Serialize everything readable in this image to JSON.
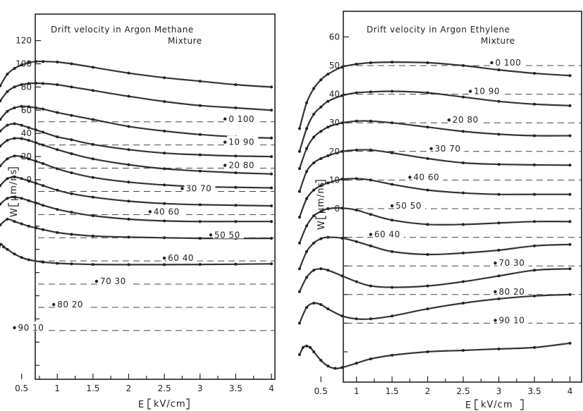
{
  "chart_data": [
    {
      "type": "line",
      "title": "Drift velocity in Argon Methane Mixture",
      "title_lines": [
        "Drift velocity in Argon Methane",
        "Mixture"
      ],
      "xlabel": "E",
      "xunit": "kV/cm",
      "ylabel": "W",
      "yunit": "μm/ns",
      "xlim": [
        0.1,
        4
      ],
      "x_ticks": [
        "0.5",
        "1",
        "1.5",
        "2",
        "2.5",
        "3",
        "3.5",
        "4"
      ],
      "y_ticks": [
        "0",
        "20",
        "40",
        "60",
        "80",
        "100",
        "120"
      ],
      "curve_offset_step": 20,
      "series": [
        {
          "name": "0 100",
          "baseline": 50,
          "x": [
            0.2,
            0.3,
            0.4,
            0.5,
            0.6,
            0.7,
            0.8,
            1.0,
            1.2,
            1.5,
            2.0,
            2.5,
            3.0,
            3.5,
            4.0
          ],
          "y": [
            81,
            91,
            96,
            99,
            101,
            102,
            102,
            101.5,
            100,
            97,
            92,
            88,
            85,
            82,
            80
          ]
        },
        {
          "name": "10 90",
          "baseline": 30,
          "x": [
            0.2,
            0.3,
            0.4,
            0.5,
            0.6,
            0.7,
            0.8,
            1.0,
            1.2,
            1.5,
            2.0,
            2.5,
            3.0,
            3.5,
            4.0
          ],
          "y": [
            68,
            76,
            80,
            82,
            83,
            83.3,
            83,
            82,
            80,
            77,
            72,
            67.5,
            64,
            62,
            60
          ]
        },
        {
          "name": "20 80",
          "baseline": 10,
          "x": [
            0.2,
            0.3,
            0.4,
            0.5,
            0.6,
            0.7,
            0.8,
            1.0,
            1.2,
            1.5,
            2.0,
            2.5,
            3.0,
            3.5,
            4.0
          ],
          "y": [
            52,
            59,
            62,
            63.3,
            63,
            62,
            61,
            58,
            55.5,
            52,
            46,
            42,
            39,
            37,
            36
          ]
        },
        {
          "name": "30 70",
          "baseline": -10,
          "x": [
            0.2,
            0.3,
            0.4,
            0.5,
            0.6,
            0.7,
            0.8,
            1.0,
            1.2,
            1.5,
            2.0,
            2.5,
            3.0,
            3.5,
            4.0
          ],
          "y": [
            42,
            47,
            48.3,
            47,
            45,
            43,
            41,
            37,
            34.5,
            30.5,
            26,
            23,
            21.5,
            20.5,
            20
          ]
        },
        {
          "name": "40 60",
          "baseline": -30,
          "x": [
            0.2,
            0.3,
            0.4,
            0.5,
            0.6,
            0.7,
            0.8,
            1.0,
            1.2,
            1.5,
            2.0,
            2.5,
            3.0,
            3.5,
            4.0
          ],
          "y": [
            29,
            34,
            35.7,
            35.5,
            34,
            32,
            30,
            26,
            22.5,
            18,
            13,
            9.5,
            7.5,
            6,
            5
          ]
        },
        {
          "name": "50 50",
          "baseline": -50,
          "x": [
            0.2,
            0.3,
            0.4,
            0.5,
            0.6,
            0.7,
            0.8,
            1.0,
            1.2,
            1.5,
            2.0,
            2.5,
            3.0,
            3.5,
            4.0
          ],
          "y": [
            12,
            18,
            20.5,
            20,
            18,
            16,
            14,
            9.5,
            6,
            2,
            -2,
            -4.5,
            -6,
            -6.5,
            -7
          ]
        },
        {
          "name": "60 40",
          "baseline": -70,
          "x": [
            0.2,
            0.3,
            0.4,
            0.5,
            0.6,
            0.7,
            0.8,
            1.0,
            1.2,
            1.5,
            2.0,
            2.5,
            3.0,
            3.5,
            4.0
          ],
          "y": [
            -5,
            1,
            2.4,
            1,
            -1,
            -3,
            -5,
            -9,
            -12,
            -15,
            -18.5,
            -20.5,
            -21.5,
            -22,
            -22.5
          ]
        },
        {
          "name": "70 30",
          "baseline": -90,
          "x": [
            0.2,
            0.3,
            0.4,
            0.5,
            0.6,
            0.7,
            0.8,
            1.0,
            1.2,
            1.5,
            2.0,
            2.5,
            3.0,
            3.5,
            4.0
          ],
          "y": [
            -21,
            -16,
            -15,
            -16,
            -18,
            -20,
            -22,
            -25.5,
            -28,
            -31,
            -34,
            -35.5,
            -36,
            -36,
            -36
          ]
        },
        {
          "name": "80 20",
          "baseline": -110,
          "x": [
            0.2,
            0.3,
            0.4,
            0.5,
            0.6,
            0.7,
            0.8,
            1.0,
            1.2,
            1.5,
            2.0,
            2.5,
            3.0,
            3.5,
            4.0
          ],
          "y": [
            -39,
            -34,
            -36,
            -38,
            -40,
            -41.5,
            -43,
            -45.5,
            -47,
            -48.5,
            -49.5,
            -50,
            -50.5,
            -50.5,
            -50.5
          ]
        },
        {
          "name": "90 10",
          "baseline": -130,
          "x": [
            0.15,
            0.2,
            0.25,
            0.3,
            0.4,
            0.5,
            0.6,
            0.8,
            1.0,
            1.2,
            1.5,
            2.0,
            2.5,
            3.0,
            3.5,
            4.0
          ],
          "y": [
            -74,
            -56,
            -58,
            -60,
            -64,
            -67,
            -69,
            -71,
            -72,
            -72.5,
            -73,
            -73.2,
            -73.2,
            -73,
            -72.8,
            -72.5
          ]
        }
      ]
    },
    {
      "type": "line",
      "title": "Drift velocity in Argon Ethylene Mixture",
      "title_lines": [
        "Drift velocity in Argon Ethylene",
        "Mixture"
      ],
      "xlabel": "E",
      "xunit": "kV/cm",
      "ylabel": "W",
      "yunit": "μm/ns",
      "xlim": [
        0.1,
        4
      ],
      "x_ticks": [
        "0.5",
        "1",
        "1.5",
        "2",
        "2.5",
        "3",
        "3.5",
        "4"
      ],
      "y_ticks": [
        "0",
        "10",
        "20",
        "30",
        "40",
        "50",
        "60"
      ],
      "curve_offset_step": 10,
      "series": [
        {
          "name": "0 100",
          "baseline": 50,
          "x": [
            0.2,
            0.3,
            0.4,
            0.5,
            0.6,
            0.8,
            1.0,
            1.2,
            1.5,
            2.0,
            2.5,
            3.0,
            3.5,
            4.0
          ],
          "y": [
            28,
            37,
            42,
            45,
            47,
            49.5,
            50.5,
            51,
            51.2,
            51,
            50,
            48.5,
            47.3,
            46.5
          ]
        },
        {
          "name": "10 90",
          "baseline": 40,
          "x": [
            0.2,
            0.3,
            0.4,
            0.5,
            0.6,
            0.8,
            1.0,
            1.2,
            1.5,
            2.0,
            2.5,
            3.0,
            3.5,
            4.0
          ],
          "y": [
            20,
            28,
            33,
            35.5,
            37.5,
            39.5,
            40.5,
            40.8,
            41,
            40.5,
            39,
            37.5,
            36.5,
            36
          ]
        },
        {
          "name": "20 80",
          "baseline": 30,
          "x": [
            0.2,
            0.3,
            0.4,
            0.5,
            0.6,
            0.8,
            1.0,
            1.2,
            1.5,
            2.0,
            2.5,
            3.0,
            3.5,
            4.0
          ],
          "y": [
            14,
            21,
            25,
            27,
            28.5,
            30,
            30.6,
            30.6,
            30,
            28.5,
            27,
            26,
            25.5,
            25.5
          ]
        },
        {
          "name": "30 70",
          "baseline": 20,
          "x": [
            0.2,
            0.3,
            0.4,
            0.5,
            0.6,
            0.8,
            1.0,
            1.2,
            1.5,
            2.0,
            2.5,
            3.0,
            3.5,
            4.0
          ],
          "y": [
            6,
            13,
            16,
            17.5,
            18.5,
            20,
            20.5,
            20.5,
            19.5,
            17.5,
            16,
            15.5,
            15.3,
            15.2
          ]
        },
        {
          "name": "40 60",
          "baseline": 10,
          "x": [
            0.2,
            0.3,
            0.4,
            0.5,
            0.6,
            0.8,
            1.0,
            1.2,
            1.5,
            2.0,
            2.5,
            3.0,
            3.5,
            4.0
          ],
          "y": [
            -3,
            3.5,
            6.5,
            8,
            9,
            10.3,
            10.5,
            10,
            8.5,
            6.5,
            5.5,
            5,
            5,
            5
          ]
        },
        {
          "name": "50 50",
          "baseline": 0,
          "x": [
            0.2,
            0.3,
            0.4,
            0.5,
            0.6,
            0.8,
            1.0,
            1.2,
            1.5,
            2.0,
            2.5,
            3.0,
            3.5,
            4.0
          ],
          "y": [
            -12,
            -6,
            -2.5,
            -1,
            0,
            0.2,
            -0.5,
            -2,
            -4,
            -5.5,
            -5.5,
            -5,
            -4.5,
            -4.5
          ]
        },
        {
          "name": "60 40",
          "baseline": -10,
          "x": [
            0.2,
            0.3,
            0.4,
            0.5,
            0.6,
            0.8,
            1.0,
            1.2,
            1.5,
            2.0,
            2.5,
            3.0,
            3.5,
            4.0
          ],
          "y": [
            -21,
            -15,
            -12,
            -10.5,
            -10,
            -10.3,
            -11.5,
            -13,
            -15,
            -16,
            -15.5,
            -14.5,
            -13,
            -12.5
          ]
        },
        {
          "name": "70 30",
          "baseline": -20,
          "x": [
            0.2,
            0.3,
            0.4,
            0.5,
            0.6,
            0.8,
            1.0,
            1.2,
            1.5,
            2.0,
            2.5,
            3.0,
            3.5,
            4.0
          ],
          "y": [
            -29,
            -24,
            -21.5,
            -21,
            -21.5,
            -23.5,
            -25.5,
            -27,
            -27.5,
            -27,
            -25.5,
            -23.5,
            -21.5,
            -21
          ]
        },
        {
          "name": "80 20",
          "baseline": -30,
          "x": [
            0.2,
            0.3,
            0.4,
            0.5,
            0.6,
            0.8,
            1.0,
            1.2,
            1.5,
            2.0,
            2.5,
            3.0,
            3.5,
            4.0
          ],
          "y": [
            -40,
            -34.5,
            -33,
            -33.5,
            -35,
            -37.5,
            -38.5,
            -38.5,
            -37.5,
            -35,
            -33,
            -31.5,
            -30.5,
            -30
          ]
        },
        {
          "name": "90 10",
          "baseline": -40,
          "x": [
            0.2,
            0.25,
            0.3,
            0.35,
            0.4,
            0.5,
            0.6,
            0.7,
            0.8,
            1.0,
            1.2,
            1.5,
            2.0,
            2.5,
            3.0,
            3.5,
            4.0
          ],
          "y": [
            -51,
            -48.5,
            -48,
            -48.5,
            -50,
            -53,
            -55,
            -55.8,
            -55.5,
            -54,
            -52.5,
            -51.2,
            -50,
            -49.5,
            -49,
            -48.5,
            -47
          ]
        }
      ]
    }
  ]
}
